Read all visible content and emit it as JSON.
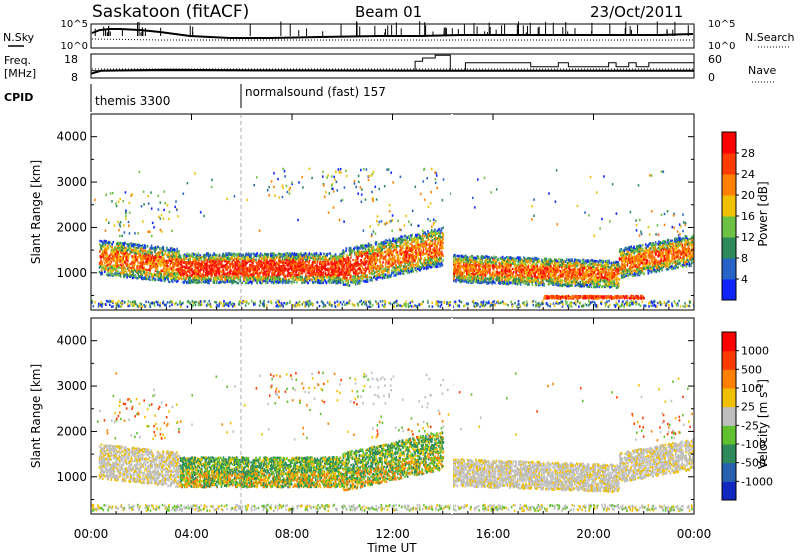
{
  "header": {
    "station": "Saskatoon (fitACF)",
    "beam": "Beam 01",
    "date": "23/Oct/2011"
  },
  "noise_panel": {
    "left_label": "N.Sky",
    "right_label": "N.Search",
    "left_ticks": [
      "10^5",
      "10^0"
    ],
    "right_ticks": [
      "10^5",
      "10^0"
    ]
  },
  "freq_panel": {
    "left_label_line1": "Freq.",
    "left_label_line2": "[MHz]",
    "right_label": "Nave",
    "left_ticks": [
      "18",
      "8"
    ],
    "right_ticks": [
      "60",
      "0"
    ],
    "freq_steps": [
      {
        "t": 0.0,
        "v": 9.8
      },
      {
        "t": 0.4,
        "v": 11.0
      },
      {
        "t": 3.0,
        "v": 11.4
      },
      {
        "t": 6.0,
        "v": 11.2
      },
      {
        "t": 14.0,
        "v": 11.0
      },
      {
        "t": 24.0,
        "v": 11.0
      }
    ],
    "nave_steps": [
      {
        "t": 0.0,
        "v": 18
      },
      {
        "t": 12.9,
        "v": 18
      },
      {
        "t": 12.9,
        "v": 42
      },
      {
        "t": 13.2,
        "v": 42
      },
      {
        "t": 13.2,
        "v": 50
      },
      {
        "t": 13.7,
        "v": 50
      },
      {
        "t": 13.7,
        "v": 57
      },
      {
        "t": 14.3,
        "v": 57
      },
      {
        "t": 14.3,
        "v": 18
      },
      {
        "t": 14.9,
        "v": 18
      },
      {
        "t": 14.9,
        "v": 38
      },
      {
        "t": 17.5,
        "v": 38
      },
      {
        "t": 17.5,
        "v": 28
      },
      {
        "t": 18.6,
        "v": 28
      },
      {
        "t": 18.6,
        "v": 38
      },
      {
        "t": 19.0,
        "v": 38
      },
      {
        "t": 19.0,
        "v": 28
      },
      {
        "t": 20.6,
        "v": 28
      },
      {
        "t": 20.6,
        "v": 38
      },
      {
        "t": 20.9,
        "v": 38
      },
      {
        "t": 20.9,
        "v": 28
      },
      {
        "t": 21.4,
        "v": 28
      },
      {
        "t": 21.4,
        "v": 38
      },
      {
        "t": 21.7,
        "v": 38
      },
      {
        "t": 21.7,
        "v": 28
      },
      {
        "t": 22.2,
        "v": 28
      },
      {
        "t": 22.2,
        "v": 38
      },
      {
        "t": 24.0,
        "v": 38
      }
    ]
  },
  "cpid": {
    "label": "CPID",
    "segments": [
      {
        "start": 0,
        "end": 6,
        "name": "themis 3300"
      },
      {
        "start": 6,
        "end": 24,
        "name": "normalsound (fast) 157"
      }
    ]
  },
  "chart_data": [
    {
      "type": "heatmap",
      "ylabel": "Slant Range [km]",
      "xlim": [
        0,
        24
      ],
      "ylim": [
        180,
        4500
      ],
      "yticks": [
        1000,
        2000,
        3000,
        4000
      ],
      "colorbar": {
        "label": "Power [dB]",
        "ticks": [
          "4",
          "8",
          "12",
          "16",
          "20",
          "24",
          "28"
        ],
        "colors": [
          "#1024ff",
          "#2864c8",
          "#2e8a5a",
          "#6cc043",
          "#f0c000",
          "#ff8000",
          "#ff3c00",
          "#ff0000"
        ]
      },
      "regions": [
        {
          "t0": 0.4,
          "t1": 3.0,
          "r0": 800,
          "r1": 1500,
          "level": "mid"
        },
        {
          "t0": 3.5,
          "t1": 10.0,
          "r0": 800,
          "r1": 1500,
          "level": "high"
        },
        {
          "t0": 10.0,
          "t1": 14.0,
          "r0": 650,
          "r1": 2100,
          "level": "mixed"
        },
        {
          "t0": 14.3,
          "t1": 24.0,
          "r0": 900,
          "r1": 1500,
          "level": "mid"
        }
      ]
    },
    {
      "type": "heatmap",
      "xlabel": "Time UT",
      "ylabel": "Slant Range [km]",
      "xlim": [
        0,
        24
      ],
      "ylim": [
        180,
        4500
      ],
      "yticks": [
        1000,
        2000,
        3000,
        4000
      ],
      "xticks": [
        "00:00",
        "04:00",
        "08:00",
        "12:00",
        "16:00",
        "20:00",
        "00:00"
      ],
      "colorbar": {
        "label": "Velocity [m s^-1]",
        "ticks": [
          "1000",
          "500",
          "100",
          "25",
          "-25",
          "-100",
          "-500",
          "-1000"
        ],
        "colors": [
          "#1028c0",
          "#2860b0",
          "#2e8a5a",
          "#60c030",
          "#bebebe",
          "#f0c000",
          "#ff8000",
          "#ff3c00",
          "#ff0000"
        ]
      },
      "regions": [
        {
          "t0": 0.4,
          "t1": 3.5,
          "r0": 500,
          "r1": 1600,
          "level": "ground"
        },
        {
          "t0": 3.5,
          "t1": 14.0,
          "r0": 800,
          "r1": 1600,
          "level": "ionos"
        },
        {
          "t0": 14.3,
          "t1": 24.0,
          "r0": 600,
          "r1": 1700,
          "level": "ground"
        }
      ]
    }
  ]
}
